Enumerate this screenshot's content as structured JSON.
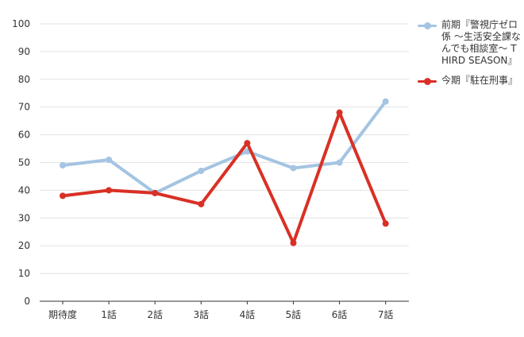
{
  "chart_data": {
    "type": "line",
    "categories": [
      "期待度",
      "1話",
      "2話",
      "3話",
      "4話",
      "5話",
      "6話",
      "7話"
    ],
    "series": [
      {
        "name": "前期『警視庁ゼロ係 ～生活安全課なんでも相談室～ THIRD SEASON』",
        "color": "#a4c4e2",
        "values": [
          49,
          51,
          39,
          47,
          54,
          48,
          50,
          72
        ]
      },
      {
        "name": "今期『駐在刑事』",
        "color": "#d93025",
        "values": [
          38,
          40,
          39,
          35,
          57,
          21,
          68,
          28
        ]
      }
    ],
    "ylim": [
      0,
      100
    ],
    "yticks": [
      "0",
      "10",
      "20",
      "30",
      "40",
      "50",
      "60",
      "70",
      "80",
      "90",
      "100"
    ],
    "grid": true,
    "legend_position": "right",
    "title": "",
    "xlabel": "",
    "ylabel": ""
  }
}
